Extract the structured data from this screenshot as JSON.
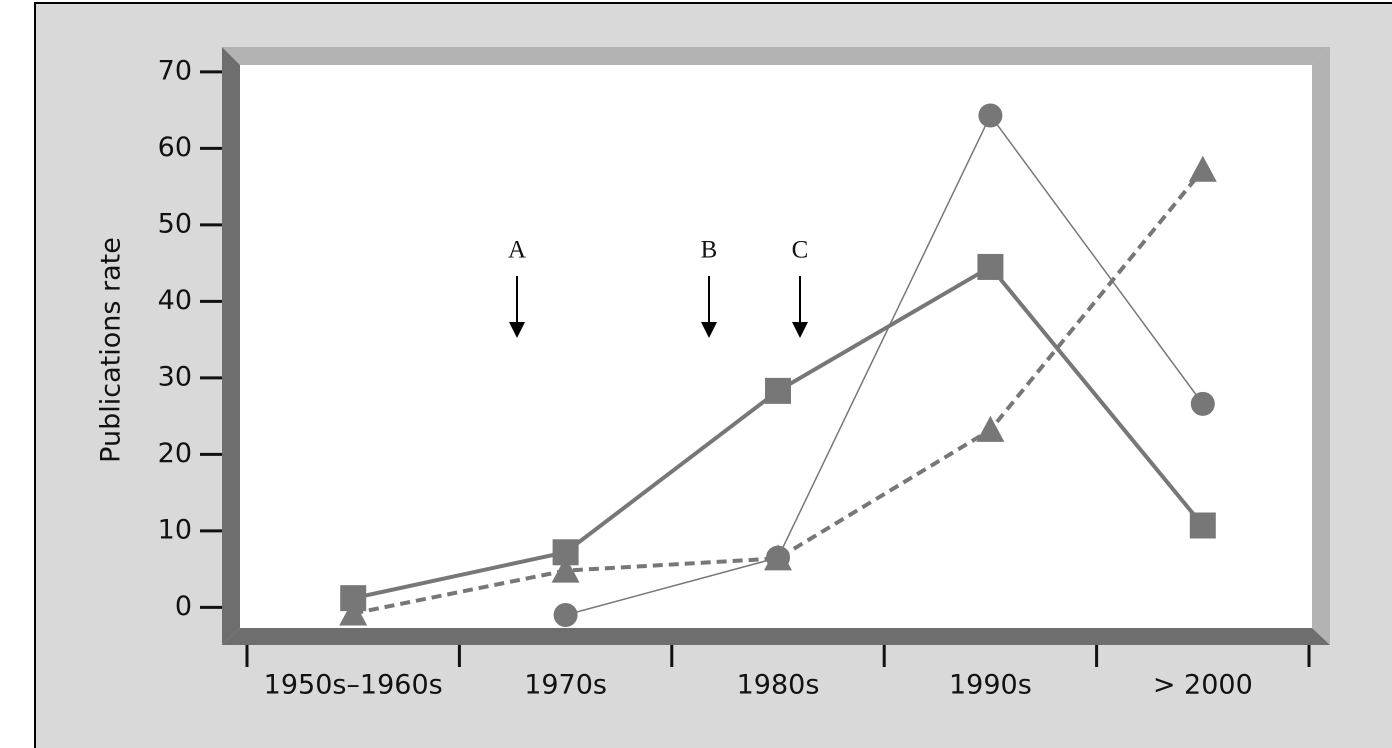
{
  "chart_data": {
    "type": "line",
    "y_label": "Publications rate",
    "categories": [
      "1950s–1960s",
      "1970s",
      "1980s",
      "1990s",
      "> 2000"
    ],
    "series": [
      {
        "color": "#777777",
        "marker": "square",
        "linestyle": "solid",
        "linewidth": 4,
        "values": [
          1.2,
          7.2,
          28.3,
          44.5,
          10.7
        ]
      },
      {
        "color": "#777777",
        "marker": "circle",
        "linestyle": "solid",
        "linewidth": 1.5,
        "values": [
          null,
          -1.0,
          6.5,
          64.3,
          26.6
        ]
      },
      {
        "color": "#777777",
        "marker": "triangle",
        "linestyle": "dashed",
        "linewidth": 4,
        "values": [
          -0.8,
          4.8,
          6.4,
          23.2,
          57.2
        ]
      }
    ],
    "annotations": [
      "A",
      "B",
      "C"
    ],
    "ylim": [
      -2.7,
      70.9
    ],
    "yticks": [
      0,
      10,
      20,
      30,
      40,
      50,
      60,
      70
    ]
  }
}
